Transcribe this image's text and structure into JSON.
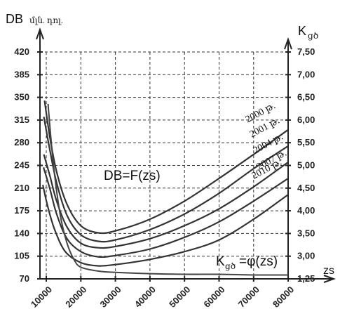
{
  "chart_data": {
    "type": "line",
    "left_axis": {
      "title": "DB",
      "subtitle": "մլն. դոլ.",
      "ticks": [
        "420",
        "385",
        "350",
        "315",
        "280",
        "245",
        "210",
        "175",
        "140",
        "105",
        "70"
      ],
      "tick_values": [
        420,
        385,
        350,
        315,
        280,
        245,
        210,
        175,
        140,
        105,
        70
      ],
      "ylim": [
        70,
        420
      ]
    },
    "right_axis": {
      "title": "K",
      "subscript": "ցծ",
      "ticks": [
        "7,50",
        "7,00",
        "6,50",
        "6,00",
        "5,50",
        "5,00",
        "4,50",
        "4,00",
        "3,50",
        "3,00",
        "1,25"
      ]
    },
    "x_axis": {
      "title": "zs",
      "ticks": [
        "10000",
        "20000",
        "30000",
        "40000",
        "50000",
        "60000",
        "70000",
        "80000"
      ],
      "tick_values": [
        10000,
        20000,
        30000,
        40000,
        50000,
        60000,
        70000,
        80000
      ],
      "xlim": [
        7000,
        80000
      ]
    },
    "grid": true,
    "annotations": {
      "db_function": "DB=F(zs)",
      "k_function_prefix": "K",
      "k_function_sub": "ցծ",
      "k_function_suffix": "=φ(zs)"
    },
    "series": [
      {
        "name": "2000 թ.",
        "x": [
          9500,
          11000,
          13000,
          16000,
          20000,
          25000,
          30000,
          40000,
          50000,
          60000,
          70000,
          80000
        ],
        "y": [
          345,
          290,
          235,
          185,
          152,
          141,
          144,
          162,
          190,
          225,
          262,
          300
        ]
      },
      {
        "name": "2001 թ.",
        "x": [
          9300,
          11000,
          13000,
          16000,
          20000,
          25000,
          30000,
          40000,
          50000,
          60000,
          70000,
          80000
        ],
        "y": [
          320,
          270,
          218,
          168,
          138,
          128,
          130,
          146,
          170,
          202,
          240,
          275
        ]
      },
      {
        "name": "2004 թ.",
        "x": [
          9300,
          11000,
          13000,
          16000,
          20000,
          25000,
          30000,
          40000,
          50000,
          60000,
          70000,
          80000
        ],
        "y": [
          262,
          230,
          190,
          150,
          125,
          118,
          120,
          132,
          152,
          178,
          212,
          250
        ]
      },
      {
        "name": "2007 թ.",
        "x": [
          9200,
          11000,
          13000,
          16000,
          20000,
          25000,
          30000,
          40000,
          50000,
          60000,
          70000,
          80000
        ],
        "y": [
          242,
          210,
          170,
          132,
          112,
          104,
          106,
          116,
          134,
          158,
          190,
          225
        ]
      },
      {
        "name": "2010 թ.",
        "x": [
          9000,
          10500,
          12500,
          15500,
          20000,
          25000,
          30000,
          40000,
          50000,
          60000,
          70000,
          80000
        ],
        "y": [
          215,
          180,
          145,
          112,
          95,
          90,
          92,
          100,
          112,
          130,
          162,
          200
        ]
      },
      {
        "name": "",
        "x": [
          10500,
          12000,
          14000,
          16000,
          18000,
          20000,
          25000,
          30000,
          40000,
          50000,
          60000,
          70000,
          80000
        ],
        "y": [
          340,
          250,
          170,
          125,
          100,
          88,
          82,
          80,
          78,
          77,
          77,
          76,
          76
        ]
      }
    ]
  }
}
